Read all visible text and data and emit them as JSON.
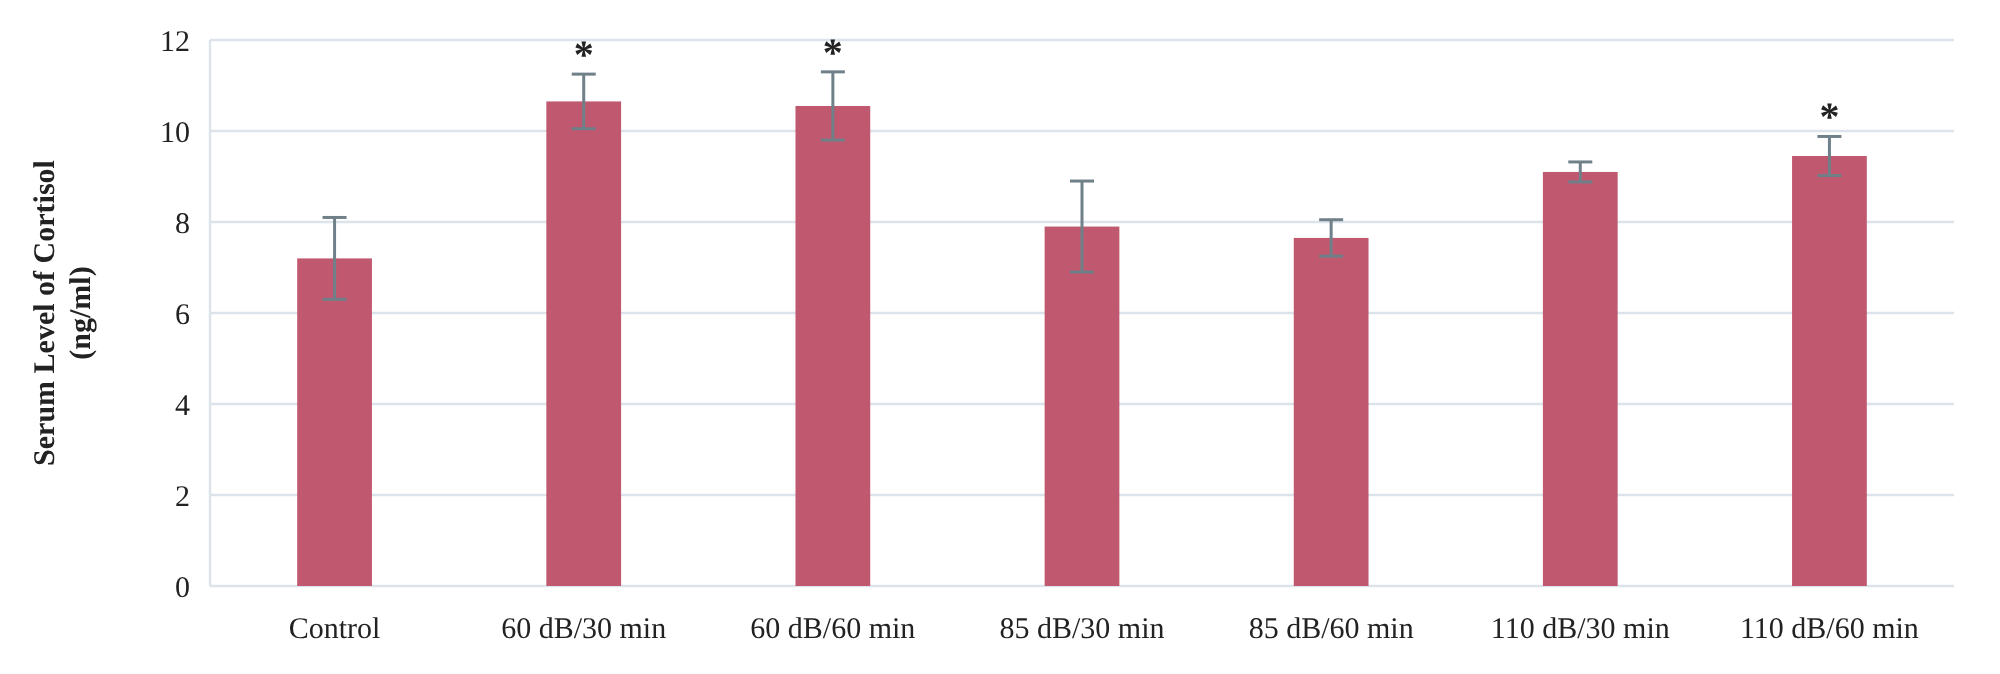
{
  "chart_data": {
    "type": "bar",
    "ylabel": "Serum Level of Cortisol\n(ng/ml)",
    "categories": [
      "Control",
      "60 dB/30 min",
      "60 dB/60 min",
      "85 dB/30 min",
      "85 dB/60 min",
      "110 dB/30 min",
      "110 dB/60 min"
    ],
    "values": [
      7.2,
      10.65,
      10.55,
      7.9,
      7.65,
      9.1,
      9.45
    ],
    "errors": [
      0.9,
      0.6,
      0.75,
      1.0,
      0.4,
      0.22,
      0.43
    ],
    "color": "#c0586f",
    "ylim": [
      0,
      12
    ],
    "yticks": [
      0,
      2,
      4,
      6,
      8,
      10,
      12
    ],
    "grid": "y",
    "annotations": [
      {
        "text": "*",
        "x": "60 dB/30 min",
        "y": 10.65
      },
      {
        "text": "*",
        "x": "60 dB/60 min",
        "y": 10.55
      },
      {
        "text": "*",
        "x": "110 dB/60 min",
        "y": 9.45
      }
    ]
  }
}
